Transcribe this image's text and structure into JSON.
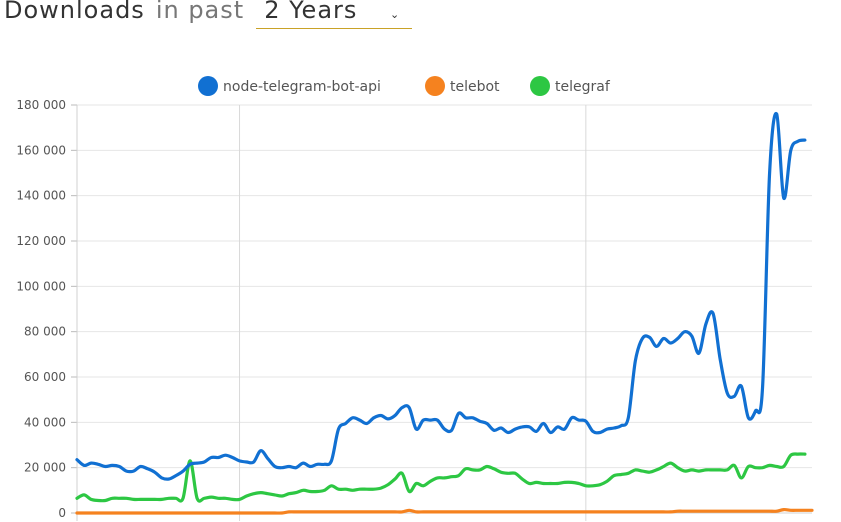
{
  "header": {
    "title": "Downloads",
    "in_past": "in past",
    "period": "2 Years",
    "chevron_icon": "chevron-down-icon"
  },
  "chart_data": {
    "type": "line",
    "ylim": [
      0,
      180000
    ],
    "yticks": [
      0,
      20000,
      40000,
      60000,
      80000,
      100000,
      120000,
      140000,
      160000,
      180000
    ],
    "ytick_labels": [
      "0",
      "20 000",
      "40 000",
      "60 000",
      "80 000",
      "100 000",
      "120 000",
      "140 000",
      "160 000",
      "180 000"
    ],
    "grid": true,
    "legend_position": "top",
    "xrange": [
      0,
      104
    ],
    "vertical_gridlines_at": [
      23,
      72
    ],
    "series": [
      {
        "name": "node-telegram-bot-api",
        "color": "#1170d2",
        "values": [
          23500,
          21000,
          22000,
          21500,
          20500,
          21000,
          20500,
          18500,
          18500,
          20500,
          19500,
          18000,
          15500,
          15000,
          16500,
          18500,
          21500,
          22000,
          22500,
          24500,
          24500,
          25500,
          24500,
          23000,
          22500,
          22500,
          27500,
          24000,
          20500,
          20000,
          20500,
          20000,
          22000,
          20500,
          21500,
          21500,
          23000,
          37000,
          39500,
          42000,
          41000,
          39500,
          42000,
          43000,
          41500,
          43000,
          46500,
          46500,
          37000,
          41000,
          41000,
          41000,
          37000,
          36500,
          44000,
          42000,
          42000,
          40500,
          39500,
          36500,
          37500,
          35500,
          37000,
          38000,
          38000,
          36000,
          39500,
          35500,
          38000,
          37000,
          42000,
          41000,
          40500,
          36000,
          35500,
          37000,
          37500,
          38500,
          42000,
          67000,
          77000,
          77500,
          73500,
          77000,
          75000,
          77000,
          80000,
          78000,
          70500,
          83500,
          88000,
          68000,
          53000,
          51500,
          56000,
          42000,
          45000,
          55000,
          150000,
          176000,
          139000,
          160000,
          164000,
          164500
        ]
      },
      {
        "name": "telebot",
        "color": "#f5821f",
        "values": [
          0,
          0,
          0,
          0,
          0,
          0,
          0,
          0,
          0,
          0,
          0,
          0,
          0,
          0,
          0,
          0,
          0,
          0,
          0,
          0,
          0,
          0,
          0,
          0,
          0,
          0,
          0,
          0,
          0,
          0,
          500,
          500,
          500,
          500,
          500,
          500,
          500,
          500,
          500,
          500,
          500,
          500,
          500,
          500,
          500,
          500,
          500,
          1200,
          500,
          500,
          500,
          500,
          500,
          500,
          500,
          500,
          500,
          500,
          500,
          500,
          500,
          500,
          500,
          500,
          500,
          500,
          500,
          500,
          500,
          500,
          500,
          500,
          500,
          500,
          500,
          500,
          500,
          500,
          500,
          500,
          500,
          500,
          500,
          500,
          500,
          800,
          800,
          800,
          800,
          800,
          800,
          800,
          800,
          800,
          800,
          800,
          800,
          800,
          800,
          800,
          1500,
          1200,
          1200,
          1200,
          1200
        ]
      },
      {
        "name": "telegraf",
        "color": "#2dc743",
        "values": [
          6500,
          8000,
          6000,
          5500,
          5500,
          6500,
          6500,
          6500,
          6000,
          6000,
          6000,
          6000,
          6000,
          6500,
          6500,
          6500,
          23000,
          6500,
          6500,
          7000,
          6500,
          6500,
          6000,
          6000,
          7500,
          8500,
          9000,
          8500,
          8000,
          7500,
          8500,
          9000,
          10000,
          9500,
          9500,
          10000,
          12000,
          10500,
          10500,
          10000,
          10500,
          10500,
          10500,
          11000,
          12500,
          15000,
          17500,
          9500,
          13000,
          12000,
          14000,
          15500,
          15500,
          16000,
          16500,
          19500,
          19000,
          19000,
          20500,
          19500,
          18000,
          17500,
          17500,
          15000,
          13000,
          13500,
          13000,
          13000,
          13000,
          13500,
          13500,
          13000,
          12000,
          12000,
          12500,
          14000,
          16500,
          17000,
          17500,
          19000,
          18500,
          18000,
          19000,
          20500,
          22000,
          20000,
          18500,
          19000,
          18500,
          19000,
          19000,
          19000,
          19000,
          21000,
          15500,
          20500,
          20000,
          20000,
          21000,
          20500,
          20500,
          25500,
          26000,
          26000
        ]
      }
    ]
  }
}
